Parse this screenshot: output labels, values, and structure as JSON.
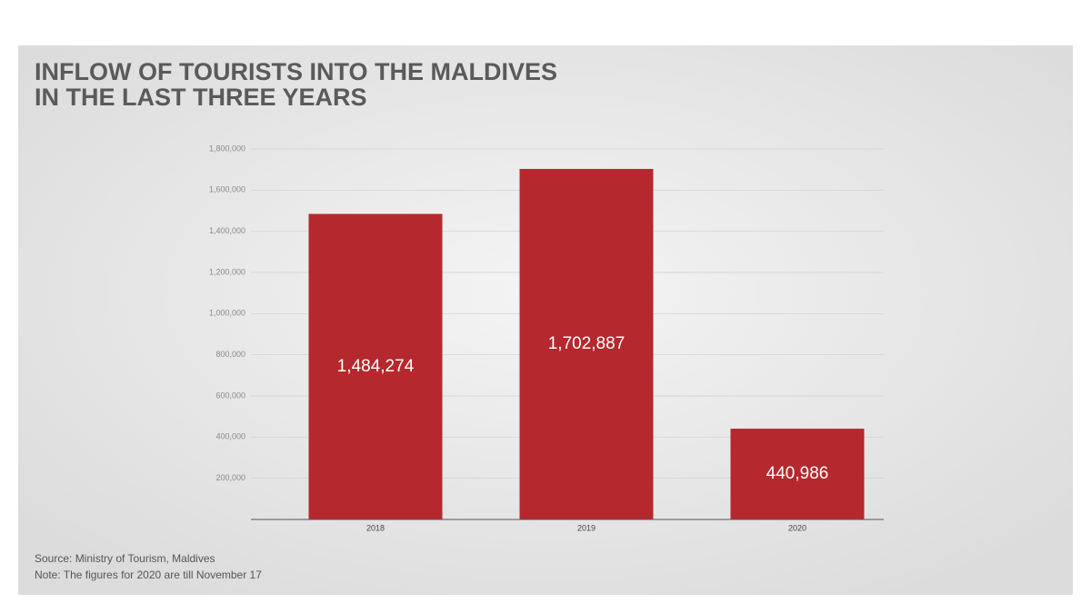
{
  "chart_data": {
    "type": "bar",
    "title_lines": [
      "INFLOW OF TOURISTS INTO THE MALDIVES",
      "IN THE LAST THREE YEARS"
    ],
    "categories": [
      "2018",
      "2019",
      "2020"
    ],
    "values": [
      1484274,
      1702887,
      440986
    ],
    "value_labels": [
      "1,484,274",
      "1,702,887",
      "440,986"
    ],
    "color": "#b5282e",
    "ylim": [
      0,
      1800000
    ],
    "yticks": [
      {
        "value": 200000,
        "label": "200,000"
      },
      {
        "value": 400000,
        "label": "400,000"
      },
      {
        "value": 600000,
        "label": "600,000"
      },
      {
        "value": 800000,
        "label": "800,000"
      },
      {
        "value": 1000000,
        "label": "1,000,000"
      },
      {
        "value": 1200000,
        "label": "1,200,000"
      },
      {
        "value": 1400000,
        "label": "1,400,000"
      },
      {
        "value": 1600000,
        "label": "1,600,000"
      },
      {
        "value": 1800000,
        "label": "1,800,000"
      }
    ],
    "grid": true,
    "source": "Source: Ministry of Tourism, Maldives",
    "note": "Note: The figures for 2020 are till November 17"
  }
}
